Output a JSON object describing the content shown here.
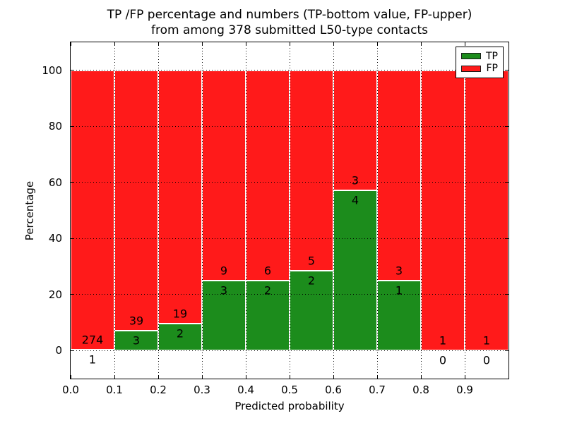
{
  "title": {
    "line1": "TP /FP percentage and numbers (TP-bottom value, FP-upper)",
    "line2": "from among 378 submitted L50-type contacts"
  },
  "axes": {
    "xlabel": "Predicted probability",
    "ylabel": "Percentage",
    "xtick_labels": [
      "0.0",
      "0.1",
      "0.2",
      "0.3",
      "0.4",
      "0.5",
      "0.6",
      "0.7",
      "0.8",
      "0.9"
    ],
    "xtick_values": [
      0.0,
      0.1,
      0.2,
      0.3,
      0.4,
      0.5,
      0.6,
      0.7,
      0.8,
      0.9
    ],
    "ytick_labels": [
      "0",
      "20",
      "40",
      "60",
      "80",
      "100"
    ],
    "ytick_values": [
      0,
      20,
      40,
      60,
      80,
      100
    ]
  },
  "legend": {
    "entries": [
      {
        "label": "TP",
        "color": "#1c8c1c"
      },
      {
        "label": "FP",
        "color": "#ff1a1a"
      }
    ]
  },
  "chart_data": {
    "type": "bar",
    "stacked": true,
    "normalized": "each bin scaled to 100%",
    "title": "TP /FP percentage and numbers (TP-bottom value, FP-upper) from among 378 submitted L50-type contacts",
    "xlabel": "Predicted probability",
    "ylabel": "Percentage",
    "xlim": [
      0.0,
      1.0
    ],
    "ylim": [
      -10,
      110
    ],
    "grid": "dotted",
    "legend_position": "upper right",
    "total_contacts": 378,
    "bin_edges": [
      0.0,
      0.1,
      0.2,
      0.3,
      0.4,
      0.5,
      0.6,
      0.7,
      0.8,
      0.9,
      1.0
    ],
    "series": [
      {
        "name": "TP",
        "color": "#1c8c1c",
        "counts": [
          1,
          3,
          2,
          3,
          2,
          2,
          4,
          1,
          0,
          0
        ]
      },
      {
        "name": "FP",
        "color": "#ff1a1a",
        "counts": [
          274,
          39,
          19,
          9,
          6,
          5,
          3,
          3,
          1,
          1
        ]
      }
    ],
    "tp_percent": [
      0.36,
      7.14,
      9.52,
      25.0,
      25.0,
      28.57,
      57.14,
      25.0,
      0.0,
      0.0
    ],
    "fp_percent": [
      99.64,
      92.86,
      90.48,
      75.0,
      75.0,
      71.43,
      42.86,
      75.0,
      100.0,
      100.0
    ]
  }
}
